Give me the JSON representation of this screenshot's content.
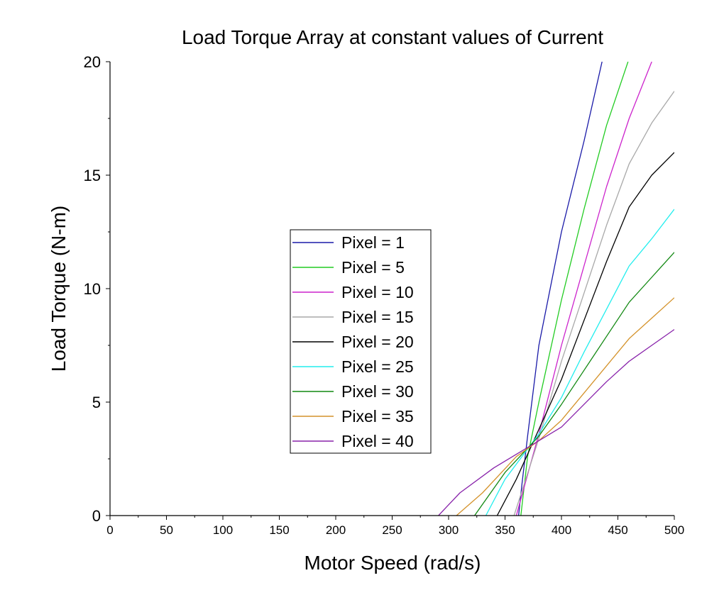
{
  "chart_data": {
    "type": "line",
    "title": "Load Torque Array at constant values of Current",
    "xlabel": "Motor Speed (rad/s)",
    "ylabel": "Load Torque (N-m)",
    "xlim": [
      0,
      500
    ],
    "ylim": [
      0,
      20
    ],
    "xticks": [
      "0",
      "50",
      "100",
      "150",
      "200",
      "250",
      "300",
      "350",
      "400",
      "450",
      "500"
    ],
    "yticks": [
      "0",
      "5",
      "10",
      "15",
      "20"
    ],
    "grid": false,
    "legend_position": "center-left",
    "series": [
      {
        "name": "Pixel = 1",
        "color": "#1a1aa8",
        "points": [
          [
            362,
            0
          ],
          [
            365,
            1.4
          ],
          [
            370,
            3.5
          ],
          [
            380,
            7.5
          ],
          [
            400,
            12.5
          ],
          [
            420,
            16.5
          ],
          [
            436,
            20
          ]
        ]
      },
      {
        "name": "Pixel = 5",
        "color": "#22cc22",
        "points": [
          [
            364,
            0
          ],
          [
            370,
            2.6
          ],
          [
            380,
            5.0
          ],
          [
            400,
            9.5
          ],
          [
            420,
            13.5
          ],
          [
            440,
            17.2
          ],
          [
            459,
            20
          ]
        ]
      },
      {
        "name": "Pixel = 10",
        "color": "#cc22cc",
        "points": [
          [
            360,
            0
          ],
          [
            380,
            3.6
          ],
          [
            400,
            7.5
          ],
          [
            420,
            11.0
          ],
          [
            440,
            14.5
          ],
          [
            460,
            17.5
          ],
          [
            480,
            20
          ]
        ]
      },
      {
        "name": "Pixel = 15",
        "color": "#a8a8a8",
        "points": [
          [
            358,
            0
          ],
          [
            380,
            3.4
          ],
          [
            400,
            6.8
          ],
          [
            420,
            9.8
          ],
          [
            440,
            12.8
          ],
          [
            460,
            15.5
          ],
          [
            480,
            17.3
          ],
          [
            500,
            18.7
          ]
        ]
      },
      {
        "name": "Pixel = 20",
        "color": "#000000",
        "points": [
          [
            343,
            0
          ],
          [
            360,
            1.6
          ],
          [
            380,
            3.8
          ],
          [
            400,
            6.0
          ],
          [
            420,
            8.6
          ],
          [
            440,
            11.2
          ],
          [
            460,
            13.6
          ],
          [
            480,
            15.0
          ],
          [
            500,
            16.0
          ]
        ]
      },
      {
        "name": "Pixel = 25",
        "color": "#22eeee",
        "points": [
          [
            333,
            0
          ],
          [
            350,
            1.6
          ],
          [
            380,
            3.6
          ],
          [
            400,
            5.2
          ],
          [
            420,
            7.2
          ],
          [
            440,
            9.1
          ],
          [
            460,
            11.0
          ],
          [
            480,
            12.2
          ],
          [
            500,
            13.5
          ]
        ]
      },
      {
        "name": "Pixel = 30",
        "color": "#118811",
        "points": [
          [
            323,
            0
          ],
          [
            350,
            1.9
          ],
          [
            380,
            3.5
          ],
          [
            400,
            4.9
          ],
          [
            420,
            6.4
          ],
          [
            440,
            7.9
          ],
          [
            460,
            9.4
          ],
          [
            480,
            10.5
          ],
          [
            500,
            11.6
          ]
        ]
      },
      {
        "name": "Pixel = 35",
        "color": "#d4922a",
        "points": [
          [
            307,
            0
          ],
          [
            330,
            1.0
          ],
          [
            360,
            2.6
          ],
          [
            380,
            3.3
          ],
          [
            400,
            4.2
          ],
          [
            420,
            5.4
          ],
          [
            440,
            6.6
          ],
          [
            460,
            7.8
          ],
          [
            480,
            8.7
          ],
          [
            500,
            9.6
          ]
        ]
      },
      {
        "name": "Pixel = 40",
        "color": "#8822aa",
        "points": [
          [
            291,
            0
          ],
          [
            310,
            1.0
          ],
          [
            340,
            2.1
          ],
          [
            370,
            3.0
          ],
          [
            400,
            3.9
          ],
          [
            420,
            4.9
          ],
          [
            440,
            5.9
          ],
          [
            460,
            6.8
          ],
          [
            480,
            7.5
          ],
          [
            500,
            8.2
          ]
        ]
      }
    ]
  }
}
